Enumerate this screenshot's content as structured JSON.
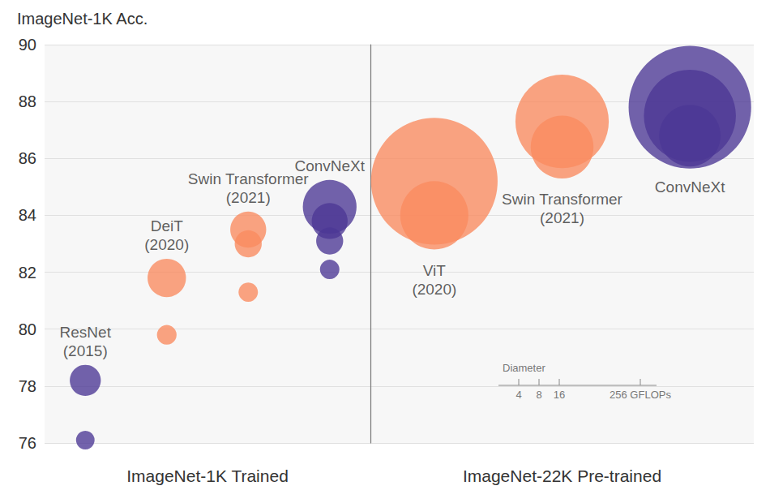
{
  "chart_data": {
    "type": "scatter",
    "y_label": "ImageNet-1K Acc.",
    "ylim": [
      76,
      90
    ],
    "yticks": [
      76,
      78,
      80,
      82,
      84,
      86,
      88,
      90
    ],
    "grid": true,
    "tick_labels": "y",
    "panels": [
      {
        "title": "ImageNet-1K Trained",
        "series": [
          {
            "name": "ResNet",
            "year": "(2015)",
            "color": "#4b3795",
            "values": [
              76.1,
              78.2
            ],
            "gflops": [
              4.1,
              11.5
            ]
          },
          {
            "name": "DeiT",
            "year": "(2020)",
            "color": "#fa8a5f",
            "values": [
              79.8,
              81.8
            ],
            "gflops": [
              4.6,
              17.6
            ]
          },
          {
            "name": "Swin Transformer",
            "year": "(2021)",
            "color": "#fa8a5f",
            "values": [
              81.3,
              83.0,
              83.5
            ],
            "gflops": [
              4.5,
              8.7,
              15.4
            ]
          },
          {
            "name": "ConvNeXt",
            "color": "#4b3795",
            "values": [
              82.1,
              83.1,
              83.8,
              84.3
            ],
            "gflops": [
              4.5,
              8.7,
              15.4,
              34.4
            ]
          }
        ]
      },
      {
        "title": "ImageNet-22K Pre-trained",
        "series": [
          {
            "name": "ViT",
            "year": "(2020)",
            "color": "#fa8a5f",
            "values": [
              84.0,
              85.2
            ],
            "gflops": [
              55.5,
              191.1
            ]
          },
          {
            "name": "Swin Transformer",
            "year": "(2021)",
            "color": "#fa8a5f",
            "values": [
              86.4,
              87.3
            ],
            "gflops": [
              47.1,
              103.9
            ]
          },
          {
            "name": "ConvNeXt",
            "color": "#4b3795",
            "values": [
              86.8,
              87.5,
              87.8
            ],
            "gflops": [
              45.1,
              101.0,
              179.0
            ]
          }
        ]
      }
    ],
    "diameter_scale": {
      "title": "Diameter",
      "ticks": [
        4,
        8,
        16,
        {
          "value": 256,
          "label": "256 GFLOPs"
        }
      ]
    }
  }
}
